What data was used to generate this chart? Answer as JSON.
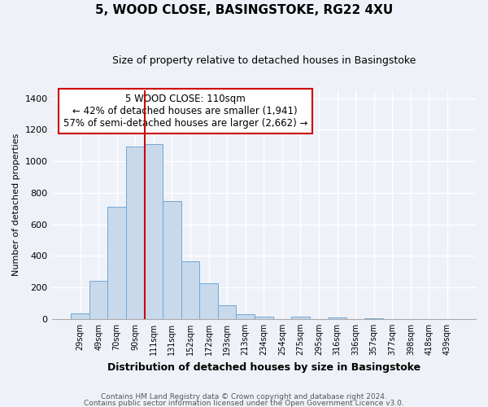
{
  "title": "5, WOOD CLOSE, BASINGSTOKE, RG22 4XU",
  "subtitle": "Size of property relative to detached houses in Basingstoke",
  "xlabel": "Distribution of detached houses by size in Basingstoke",
  "ylabel": "Number of detached properties",
  "bar_labels": [
    "29sqm",
    "49sqm",
    "70sqm",
    "90sqm",
    "111sqm",
    "131sqm",
    "152sqm",
    "172sqm",
    "193sqm",
    "213sqm",
    "234sqm",
    "254sqm",
    "275sqm",
    "295sqm",
    "316sqm",
    "336sqm",
    "357sqm",
    "377sqm",
    "398sqm",
    "418sqm",
    "439sqm"
  ],
  "bar_heights": [
    35,
    240,
    710,
    1095,
    1110,
    745,
    365,
    225,
    85,
    30,
    15,
    0,
    15,
    0,
    10,
    0,
    5,
    0,
    0,
    0,
    0
  ],
  "bar_color": "#c8d9ec",
  "bar_edge_color": "#6fa8d5",
  "bar_width": 1.0,
  "marker_index": 4,
  "marker_color": "#cc0000",
  "annotation_title": "5 WOOD CLOSE: 110sqm",
  "annotation_line1": "← 42% of detached houses are smaller (1,941)",
  "annotation_line2": "57% of semi-detached houses are larger (2,662) →",
  "annotation_box_facecolor": "#ffffff",
  "annotation_box_edgecolor": "#cc0000",
  "ylim": [
    0,
    1450
  ],
  "yticks": [
    0,
    200,
    400,
    600,
    800,
    1000,
    1200,
    1400
  ],
  "footer1": "Contains HM Land Registry data © Crown copyright and database right 2024.",
  "footer2": "Contains public sector information licensed under the Open Government Licence v3.0.",
  "bg_color": "#eef2f8",
  "plot_bg_color": "#eef2f8",
  "grid_color": "#ffffff",
  "title_fontsize": 11,
  "subtitle_fontsize": 9
}
